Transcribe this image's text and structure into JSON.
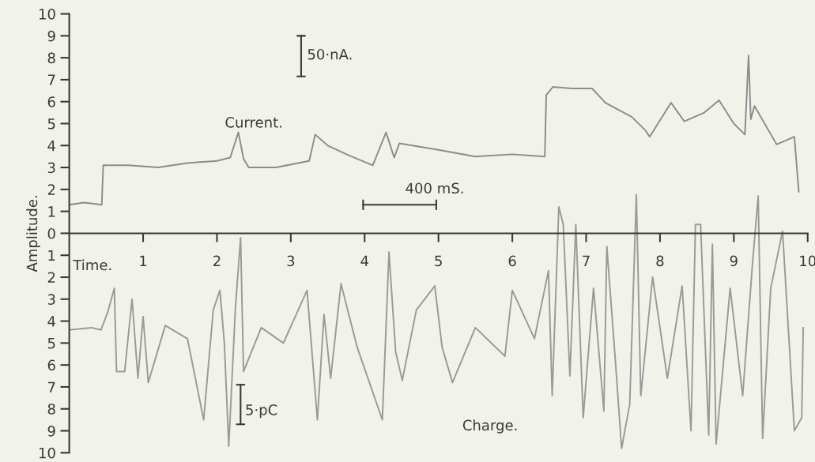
{
  "chart_data": {
    "type": "line",
    "ylabel": "Amplitude.",
    "xlim": [
      0,
      10
    ],
    "xticks": [
      1,
      2,
      3,
      4,
      5,
      6,
      7,
      8,
      9,
      10
    ],
    "ylim": [
      -10,
      10
    ],
    "yticks": [
      {
        "value": -10,
        "label": "10"
      },
      {
        "value": -9,
        "label": "9"
      },
      {
        "value": -8,
        "label": "8"
      },
      {
        "value": -7,
        "label": "7"
      },
      {
        "value": -6,
        "label": "6"
      },
      {
        "value": -5,
        "label": "5"
      },
      {
        "value": -4,
        "label": "4"
      },
      {
        "value": -3,
        "label": "3"
      },
      {
        "value": -2,
        "label": "2"
      },
      {
        "value": -1,
        "label": "1"
      },
      0,
      1,
      2,
      3,
      4,
      5,
      6,
      7,
      8,
      9,
      10
    ],
    "grid": false,
    "legend": false,
    "marker": "none",
    "line_style": "solid",
    "annotations": [
      "Current.",
      "50·nA.",
      "400 mS.",
      "Time.",
      "5·pC",
      "Charge."
    ],
    "series": [
      {
        "color": "#8c8c8c",
        "x": [
          0,
          0.2,
          0.44,
          0.46,
          0.8,
          1.2,
          1.6,
          2.0,
          2.18,
          2.29,
          2.36,
          2.43,
          2.8,
          3.25,
          3.33,
          3.5,
          3.79,
          4.11,
          4.29,
          4.4,
          4.47,
          5.0,
          5.5,
          6.0,
          6.44,
          6.46,
          6.55,
          6.8,
          7.08,
          7.26,
          7.62,
          7.8,
          7.86,
          8.15,
          8.33,
          8.6,
          8.8,
          9.0,
          9.15,
          9.2,
          9.23,
          9.28,
          9.58,
          9.82,
          9.88
        ],
        "values": [
          1.3,
          1.4,
          1.3,
          3.1,
          3.1,
          3.0,
          3.2,
          3.3,
          3.45,
          4.6,
          3.4,
          3.0,
          3.0,
          3.3,
          4.5,
          4.0,
          3.55,
          3.1,
          4.6,
          3.45,
          4.1,
          3.8,
          3.5,
          3.6,
          3.5,
          6.3,
          6.67,
          6.6,
          6.6,
          5.95,
          5.3,
          4.7,
          4.4,
          5.95,
          5.1,
          5.5,
          6.06,
          5.0,
          4.5,
          8.1,
          5.2,
          5.8,
          4.05,
          4.4,
          1.9
        ]
      },
      {
        "color": "#9a9a9a",
        "x": [
          0,
          0.3,
          0.43,
          0.52,
          0.61,
          0.64,
          0.75,
          0.85,
          0.93,
          1.0,
          1.07,
          1.3,
          1.6,
          1.82,
          1.95,
          2.04,
          2.1,
          2.16,
          2.25,
          2.32,
          2.36,
          2.6,
          2.9,
          3.22,
          3.36,
          3.45,
          3.54,
          3.68,
          3.9,
          4.24,
          4.33,
          4.42,
          4.51,
          4.7,
          4.95,
          5.05,
          5.19,
          5.5,
          5.9,
          6.0,
          6.3,
          6.49,
          6.54,
          6.63,
          6.69,
          6.78,
          6.86,
          6.96,
          7.1,
          7.24,
          7.28,
          7.4,
          7.48,
          7.59,
          7.68,
          7.74,
          7.9,
          8.1,
          8.3,
          8.42,
          8.48,
          8.55,
          8.66,
          8.71,
          8.76,
          8.95,
          9.12,
          9.25,
          9.33,
          9.39,
          9.5,
          9.66,
          9.82,
          9.92,
          9.94
        ],
        "values": [
          -4.4,
          -4.3,
          -4.4,
          -3.6,
          -2.5,
          -6.3,
          -6.3,
          -3.0,
          -6.6,
          -3.8,
          -6.8,
          -4.2,
          -4.8,
          -8.5,
          -3.5,
          -2.6,
          -5.0,
          -9.7,
          -3.4,
          -0.2,
          -6.3,
          -4.3,
          -5.0,
          -2.6,
          -8.5,
          -3.7,
          -6.6,
          -2.3,
          -5.2,
          -8.5,
          -0.86,
          -5.4,
          -6.7,
          -3.5,
          -2.4,
          -5.2,
          -6.8,
          -4.3,
          -5.6,
          -2.6,
          -4.8,
          -1.7,
          -7.4,
          1.2,
          0.4,
          -6.5,
          0.4,
          -8.4,
          -2.5,
          -8.1,
          -0.6,
          -6.0,
          -9.8,
          -7.8,
          1.76,
          -7.4,
          -2.0,
          -6.6,
          -2.4,
          -9.0,
          0.4,
          0.4,
          -9.2,
          -0.5,
          -9.6,
          -2.5,
          -7.4,
          -1.5,
          1.7,
          -9.35,
          -2.5,
          0.1,
          -9.0,
          -8.4,
          -4.3
        ]
      }
    ]
  }
}
